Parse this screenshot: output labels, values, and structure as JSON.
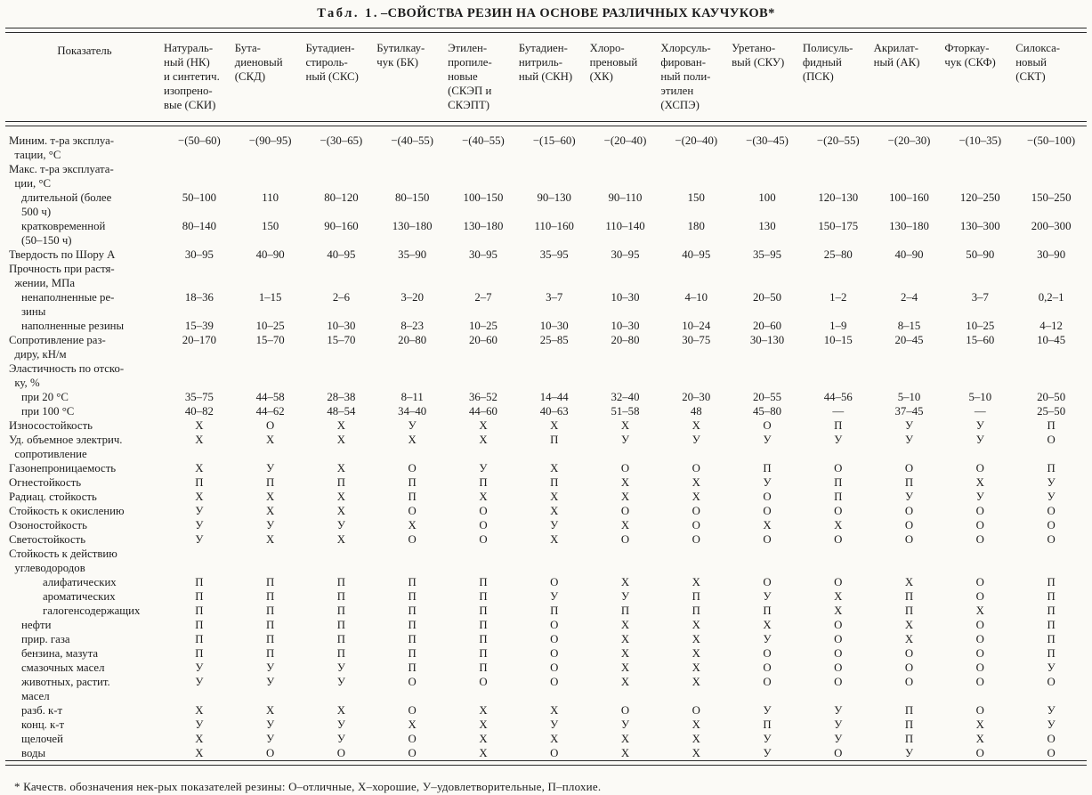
{
  "title": {
    "prefix": "Табл. 1.",
    "main": "–СВОЙСТВА РЕЗИН НА ОСНОВЕ РАЗЛИЧНЫХ КАУЧУКОВ*"
  },
  "footnote": "* Качеств. обозначения нек-рых показателей резины: О–отличные, Х–хорошие, У–удовлетворительные, П–плохие.",
  "columns": {
    "indicator": "Показатель",
    "rubbers": [
      "Натураль-\nный (НК)\nи синтетич.\nизопрено-\nвые (СКИ)",
      "Бута-\nдиеновый\n(СКД)",
      "Бутадиен-\nстироль-\nный (СКС)",
      "Бутилкау-\nчук (БК)",
      "Этилен-\nпропиле-\nновые\n(СКЭП и\nСКЭПТ)",
      "Бутадиен-\nнитриль-\nный (СКН)",
      "Хлоро-\nпреновый\n(ХК)",
      "Хлорсуль-\nфирован-\nный поли-\nэтилен\n(ХСПЭ)",
      "Уретано-\nвый (СКУ)",
      "Полисуль-\nфидный\n(ПСК)",
      "Акрилат-\nный (АК)",
      "Фторкау-\nчук (СКФ)",
      "Силокса-\nновый\n(СКТ)"
    ]
  },
  "rows": [
    {
      "label": "Миним. т-ра эксплуа-\n  тации, °С",
      "indent": 0,
      "values": [
        "−(50–60)",
        "−(90–95)",
        "−(30–65)",
        "−(40–55)",
        "−(40–55)",
        "−(15–60)",
        "−(20–40)",
        "−(20–40)",
        "−(30–45)",
        "−(20–55)",
        "−(20–30)",
        "−(10–35)",
        "−(50–100)"
      ]
    },
    {
      "label": "Макс. т-ра эксплуата-\n  ции, °С",
      "indent": 0,
      "values": []
    },
    {
      "label": "длительной (более\n500 ч)",
      "indent": 1,
      "values": [
        "50–100",
        "110",
        "80–120",
        "80–150",
        "100–150",
        "90–130",
        "90–110",
        "150",
        "100",
        "120–130",
        "100–160",
        "120–250",
        "150–250"
      ]
    },
    {
      "label": "кратковременной\n(50–150 ч)",
      "indent": 1,
      "values": [
        "80–140",
        "150",
        "90–160",
        "130–180",
        "130–180",
        "110–160",
        "110–140",
        "180",
        "130",
        "150–175",
        "130–180",
        "130–300",
        "200–300"
      ]
    },
    {
      "label": "Твердость по Шору А",
      "indent": 0,
      "values": [
        "30–95",
        "40–90",
        "40–95",
        "35–90",
        "30–95",
        "35–95",
        "30–95",
        "40–95",
        "35–95",
        "25–80",
        "40–90",
        "50–90",
        "30–90"
      ]
    },
    {
      "label": "Прочность при растя-\n  жении, МПа",
      "indent": 0,
      "values": []
    },
    {
      "label": "ненаполненные ре-\nзины",
      "indent": 1,
      "values": [
        "18–36",
        "1–15",
        "2–6",
        "3–20",
        "2–7",
        "3–7",
        "10–30",
        "4–10",
        "20–50",
        "1–2",
        "2–4",
        "3–7",
        "0,2–1"
      ]
    },
    {
      "label": "наполненные резины",
      "indent": 1,
      "values": [
        "15–39",
        "10–25",
        "10–30",
        "8–23",
        "10–25",
        "10–30",
        "10–30",
        "10–24",
        "20–60",
        "1–9",
        "8–15",
        "10–25",
        "4–12"
      ]
    },
    {
      "label": "Сопротивление раз-\n  диру, кН/м",
      "indent": 0,
      "values": [
        "20–170",
        "15–70",
        "15–70",
        "20–80",
        "20–60",
        "25–85",
        "20–80",
        "30–75",
        "30–130",
        "10–15",
        "20–45",
        "15–60",
        "10–45"
      ]
    },
    {
      "label": "Эластичность по отско-\n  ку, %",
      "indent": 0,
      "values": []
    },
    {
      "label": "при 20 °С",
      "indent": 1,
      "values": [
        "35–75",
        "44–58",
        "28–38",
        "8–11",
        "36–52",
        "14–44",
        "32–40",
        "20–30",
        "20–55",
        "44–56",
        "5–10",
        "5–10",
        "20–50"
      ]
    },
    {
      "label": "при 100 °С",
      "indent": 1,
      "values": [
        "40–82",
        "44–62",
        "48–54",
        "34–40",
        "44–60",
        "40–63",
        "51–58",
        "48",
        "45–80",
        "—",
        "37–45",
        "—",
        "25–50"
      ]
    },
    {
      "label": "Износостойкость",
      "indent": 0,
      "values": [
        "Х",
        "О",
        "Х",
        "У",
        "Х",
        "Х",
        "Х",
        "Х",
        "О",
        "П",
        "У",
        "У",
        "П"
      ]
    },
    {
      "label": "Уд. объемное электрич.\n  сопротивление",
      "indent": 0,
      "values": [
        "Х",
        "Х",
        "Х",
        "Х",
        "Х",
        "П",
        "У",
        "У",
        "У",
        "У",
        "У",
        "У",
        "О"
      ]
    },
    {
      "label": "Газонепроницаемость",
      "indent": 0,
      "values": [
        "Х",
        "У",
        "Х",
        "О",
        "У",
        "Х",
        "О",
        "О",
        "П",
        "О",
        "О",
        "О",
        "П"
      ]
    },
    {
      "label": "Огнестойкость",
      "indent": 0,
      "values": [
        "П",
        "П",
        "П",
        "П",
        "П",
        "П",
        "Х",
        "Х",
        "У",
        "П",
        "П",
        "Х",
        "У"
      ]
    },
    {
      "label": "Радиац. стойкость",
      "indent": 0,
      "values": [
        "Х",
        "Х",
        "Х",
        "П",
        "Х",
        "Х",
        "Х",
        "Х",
        "О",
        "П",
        "У",
        "У",
        "У"
      ]
    },
    {
      "label": "Стойкость к окислению",
      "indent": 0,
      "values": [
        "У",
        "Х",
        "Х",
        "О",
        "О",
        "Х",
        "О",
        "О",
        "О",
        "О",
        "О",
        "О",
        "О"
      ]
    },
    {
      "label": "Озоностойкость",
      "indent": 0,
      "values": [
        "У",
        "У",
        "У",
        "Х",
        "О",
        "У",
        "Х",
        "О",
        "Х",
        "Х",
        "О",
        "О",
        "О"
      ]
    },
    {
      "label": "Светостойкость",
      "indent": 0,
      "values": [
        "У",
        "Х",
        "Х",
        "О",
        "О",
        "Х",
        "О",
        "О",
        "О",
        "О",
        "О",
        "О",
        "О"
      ]
    },
    {
      "label": "Стойкость к действию\n  углеводородов",
      "indent": 0,
      "values": []
    },
    {
      "label": "алифатических",
      "indent": 2,
      "values": [
        "П",
        "П",
        "П",
        "П",
        "П",
        "О",
        "Х",
        "Х",
        "О",
        "О",
        "Х",
        "О",
        "П"
      ]
    },
    {
      "label": "ароматических",
      "indent": 2,
      "values": [
        "П",
        "П",
        "П",
        "П",
        "П",
        "У",
        "У",
        "П",
        "У",
        "Х",
        "П",
        "О",
        "П"
      ]
    },
    {
      "label": "галогенсодержащих",
      "indent": 2,
      "values": [
        "П",
        "П",
        "П",
        "П",
        "П",
        "П",
        "П",
        "П",
        "П",
        "Х",
        "П",
        "Х",
        "П"
      ]
    },
    {
      "label": "нефти",
      "indent": 1,
      "values": [
        "П",
        "П",
        "П",
        "П",
        "П",
        "О",
        "Х",
        "Х",
        "Х",
        "О",
        "Х",
        "О",
        "П"
      ]
    },
    {
      "label": "прир. газа",
      "indent": 1,
      "values": [
        "П",
        "П",
        "П",
        "П",
        "П",
        "О",
        "Х",
        "Х",
        "У",
        "О",
        "Х",
        "О",
        "П"
      ]
    },
    {
      "label": "бензина, мазута",
      "indent": 1,
      "values": [
        "П",
        "П",
        "П",
        "П",
        "П",
        "О",
        "Х",
        "Х",
        "О",
        "О",
        "О",
        "О",
        "П"
      ]
    },
    {
      "label": "смазочных масел",
      "indent": 1,
      "values": [
        "У",
        "У",
        "У",
        "П",
        "П",
        "О",
        "Х",
        "Х",
        "О",
        "О",
        "О",
        "О",
        "У"
      ]
    },
    {
      "label": "животных, растит.\nмасел",
      "indent": 1,
      "values": [
        "У",
        "У",
        "У",
        "О",
        "О",
        "О",
        "Х",
        "Х",
        "О",
        "О",
        "О",
        "О",
        "О"
      ]
    },
    {
      "label": "разб. к-т",
      "indent": 1,
      "values": [
        "Х",
        "Х",
        "Х",
        "О",
        "Х",
        "Х",
        "О",
        "О",
        "У",
        "У",
        "П",
        "О",
        "У"
      ]
    },
    {
      "label": "конц. к-т",
      "indent": 1,
      "values": [
        "У",
        "У",
        "У",
        "Х",
        "Х",
        "У",
        "У",
        "Х",
        "П",
        "У",
        "П",
        "Х",
        "У"
      ]
    },
    {
      "label": "щелочей",
      "indent": 1,
      "values": [
        "Х",
        "У",
        "У",
        "О",
        "Х",
        "Х",
        "Х",
        "Х",
        "У",
        "У",
        "П",
        "Х",
        "О"
      ]
    },
    {
      "label": "воды",
      "indent": 1,
      "values": [
        "Х",
        "О",
        "О",
        "О",
        "Х",
        "О",
        "Х",
        "Х",
        "У",
        "О",
        "У",
        "О",
        "О"
      ]
    }
  ]
}
